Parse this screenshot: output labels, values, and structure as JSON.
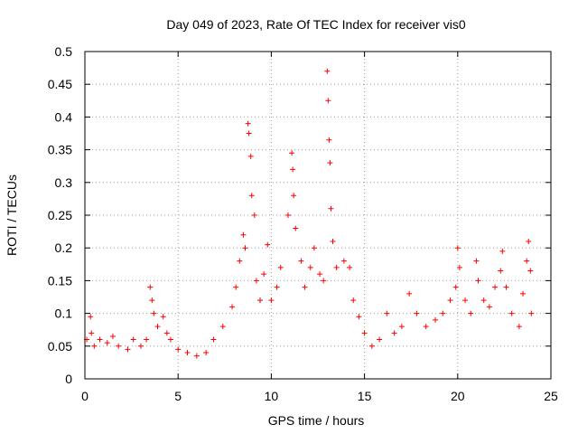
{
  "chart_data": {
    "type": "scatter",
    "title": "Day 049 of 2023, Rate Of TEC Index for receiver vis0",
    "xlabel": "GPS time / hours",
    "ylabel": "ROTI / TECUs",
    "xlim": [
      0,
      25
    ],
    "ylim": [
      0,
      0.5
    ],
    "xticks": [
      0,
      5,
      10,
      15,
      20,
      25
    ],
    "yticks": [
      0,
      0.05,
      0.1,
      0.15,
      0.2,
      0.25,
      0.3,
      0.35,
      0.4,
      0.45,
      0.5
    ],
    "xtick_labels": [
      "0",
      "5",
      "10",
      "15",
      "20",
      "25"
    ],
    "ytick_labels": [
      "0",
      "0.05",
      "0.1",
      "0.15",
      "0.2",
      "0.25",
      "0.3",
      "0.35",
      "0.4",
      "0.45",
      "0.5"
    ],
    "grid": true,
    "marker": "+",
    "color": "#ff0000",
    "series": [
      {
        "name": "vis0",
        "x": [
          0.1,
          0.3,
          0.35,
          0.5,
          0.8,
          1.2,
          1.5,
          1.8,
          2.3,
          2.6,
          3.0,
          3.3,
          3.5,
          3.6,
          3.7,
          3.9,
          4.2,
          4.4,
          4.6,
          5.0,
          5.5,
          6.0,
          6.5,
          6.9,
          7.4,
          7.9,
          8.1,
          8.3,
          8.5,
          8.6,
          8.75,
          8.8,
          8.9,
          8.95,
          9.1,
          9.2,
          9.4,
          9.6,
          9.8,
          10.0,
          10.3,
          10.5,
          10.9,
          11.1,
          11.15,
          11.2,
          11.3,
          11.6,
          11.8,
          12.1,
          12.3,
          12.6,
          12.8,
          13.0,
          13.05,
          13.1,
          13.15,
          13.2,
          13.3,
          13.5,
          13.9,
          14.2,
          14.4,
          14.7,
          15.0,
          15.4,
          15.8,
          16.2,
          16.6,
          17.0,
          17.4,
          17.8,
          18.3,
          18.8,
          19.2,
          19.6,
          19.9,
          20.0,
          20.1,
          20.4,
          20.7,
          21.0,
          21.1,
          21.4,
          21.7,
          22.0,
          22.3,
          22.4,
          22.6,
          22.9,
          23.3,
          23.5,
          23.7,
          23.8,
          23.9,
          23.95
        ],
        "y": [
          0.06,
          0.095,
          0.07,
          0.05,
          0.06,
          0.055,
          0.065,
          0.05,
          0.045,
          0.06,
          0.05,
          0.06,
          0.14,
          0.12,
          0.1,
          0.08,
          0.095,
          0.07,
          0.06,
          0.045,
          0.04,
          0.035,
          0.04,
          0.06,
          0.08,
          0.11,
          0.14,
          0.18,
          0.22,
          0.2,
          0.39,
          0.375,
          0.34,
          0.28,
          0.25,
          0.15,
          0.12,
          0.16,
          0.205,
          0.12,
          0.14,
          0.17,
          0.25,
          0.345,
          0.32,
          0.28,
          0.23,
          0.18,
          0.14,
          0.17,
          0.2,
          0.16,
          0.15,
          0.47,
          0.425,
          0.365,
          0.33,
          0.26,
          0.21,
          0.17,
          0.18,
          0.17,
          0.12,
          0.095,
          0.07,
          0.05,
          0.06,
          0.1,
          0.07,
          0.08,
          0.13,
          0.1,
          0.08,
          0.09,
          0.1,
          0.12,
          0.14,
          0.2,
          0.17,
          0.12,
          0.1,
          0.18,
          0.15,
          0.12,
          0.11,
          0.14,
          0.165,
          0.195,
          0.14,
          0.1,
          0.08,
          0.13,
          0.18,
          0.21,
          0.165,
          0.1
        ]
      }
    ]
  }
}
